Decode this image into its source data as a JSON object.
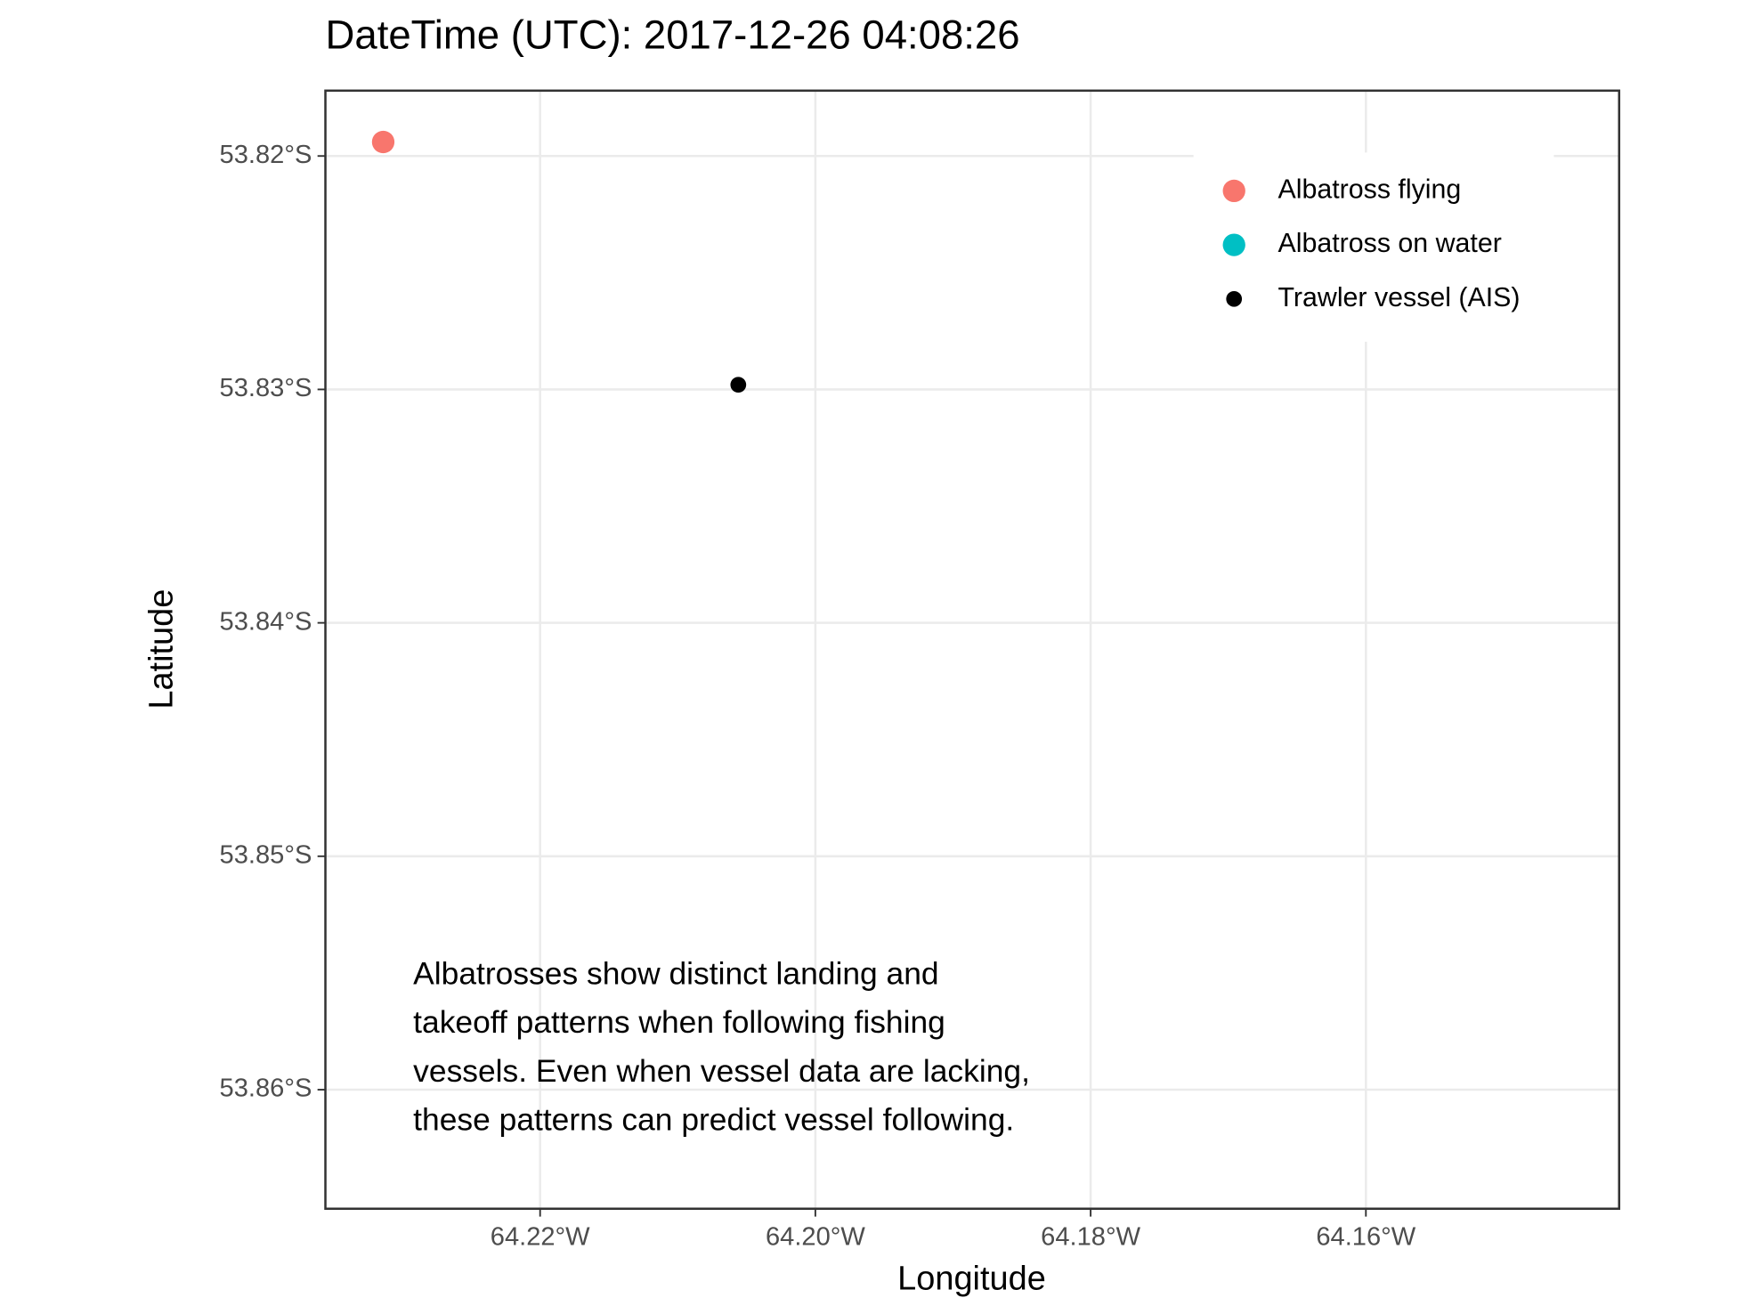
{
  "chart_data": {
    "type": "scatter",
    "title": "DateTime (UTC): 2017-12-26 04:08:26",
    "x_label": "Longitude",
    "y_label": "Latitude",
    "annotation": [
      "Albatrosses show distinct landing and",
      "takeoff patterns when following fishing",
      "vessels. Even when vessel data are lacking,",
      "these patterns can predict vessel following."
    ],
    "xlim": [
      -64.2356,
      -64.1416
    ],
    "xticks": [
      {
        "value": -64.22,
        "label": "64.22°W"
      },
      {
        "value": -64.2,
        "label": "64.20°W"
      },
      {
        "value": -64.18,
        "label": "64.18°W"
      },
      {
        "value": -64.16,
        "label": "64.16°W"
      }
    ],
    "ylim": [
      -53.8651,
      -53.8172
    ],
    "yticks": [
      {
        "value": -53.82,
        "label": "53.82°S"
      },
      {
        "value": -53.83,
        "label": "53.83°S"
      },
      {
        "value": -53.84,
        "label": "53.84°S"
      },
      {
        "value": -53.85,
        "label": "53.85°S"
      },
      {
        "value": -53.86,
        "label": "53.86°S"
      }
    ],
    "grid": true,
    "legend": "top-right",
    "series": [
      {
        "name": "Albatross flying",
        "color": "#F8766D",
        "marker_size": "large",
        "x": [
          -64.2314
        ],
        "values": [
          -53.8194
        ]
      },
      {
        "name": "Albatross on water",
        "color": "#00BFC4",
        "marker_size": "large",
        "x": [],
        "values": []
      },
      {
        "name": "Trawler vessel (AIS)",
        "color": "#000000",
        "marker_size": "small",
        "x": [
          -64.2056
        ],
        "values": [
          -53.8298
        ]
      }
    ]
  }
}
